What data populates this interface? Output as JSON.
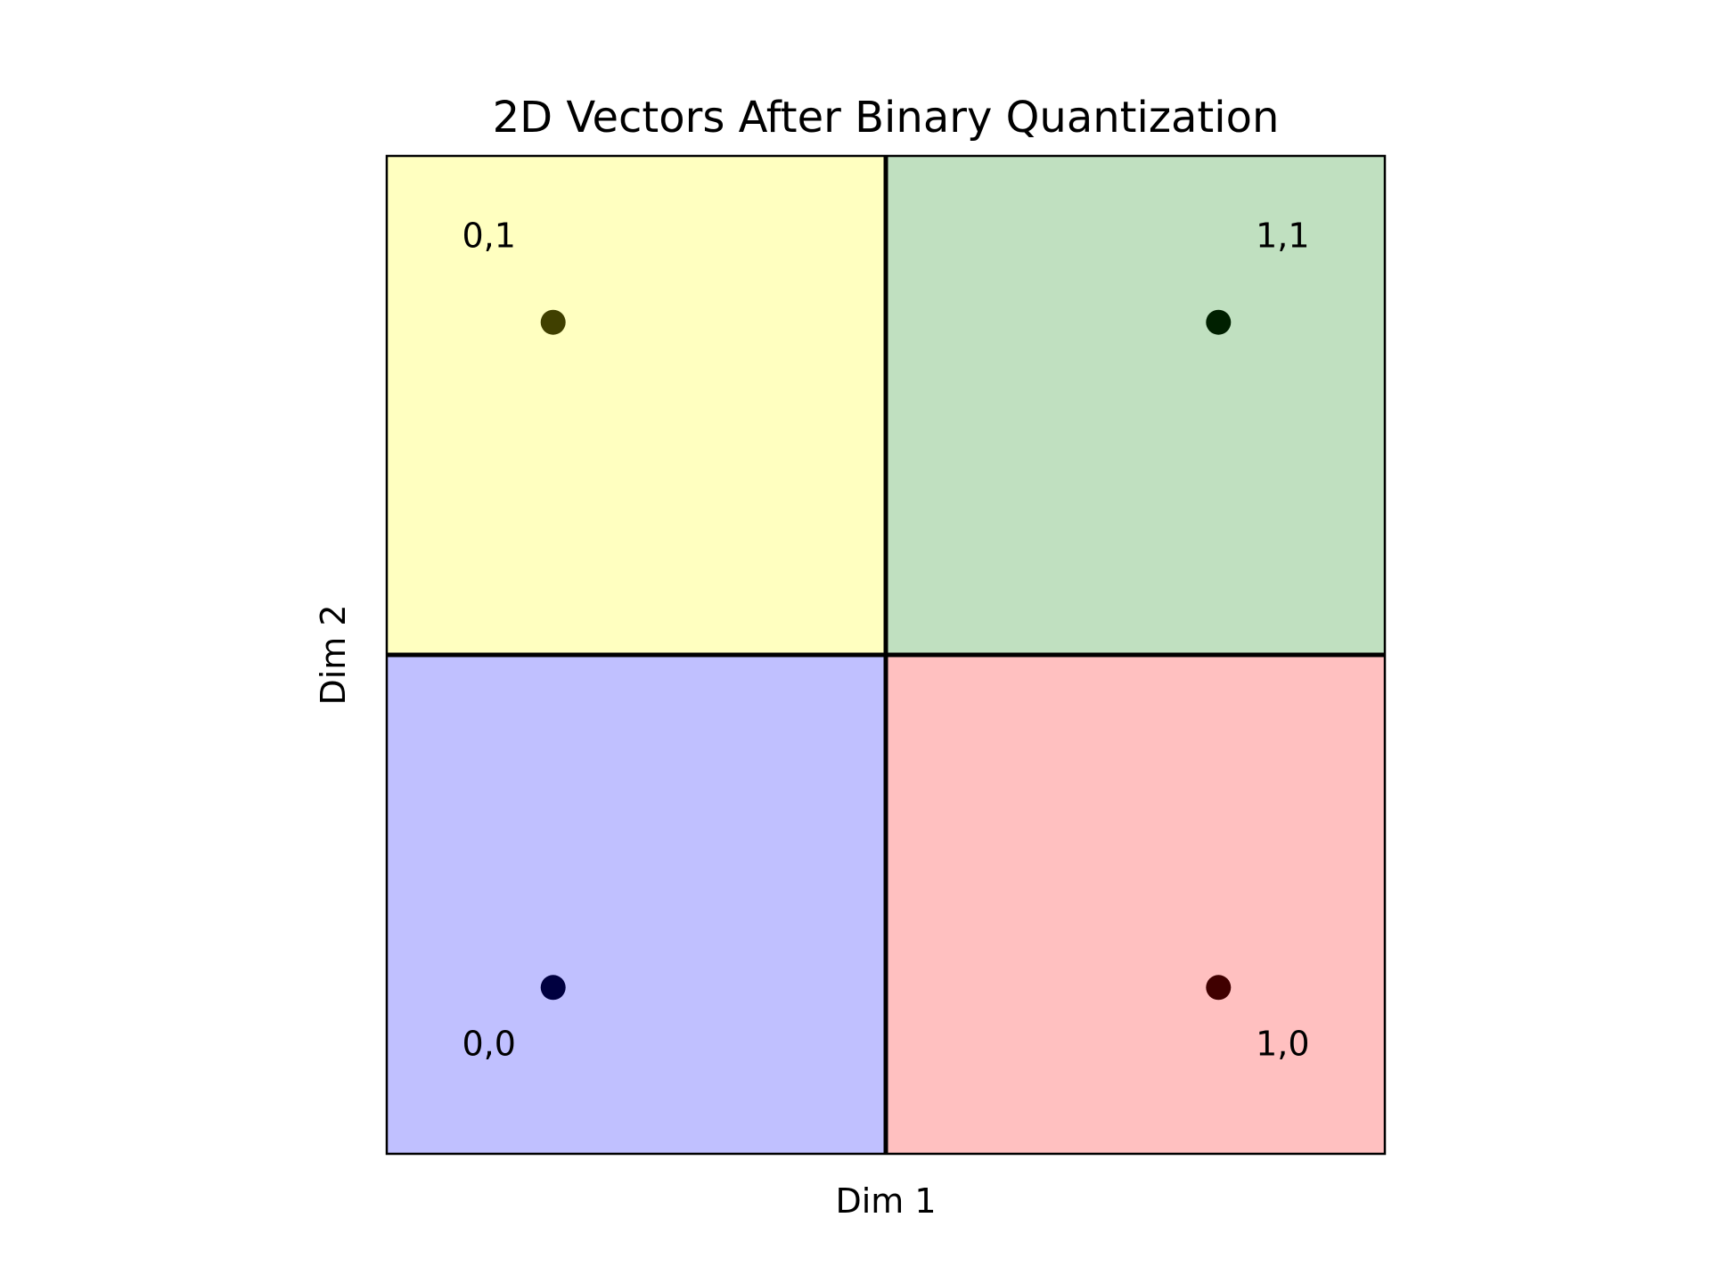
{
  "chart_data": {
    "type": "scatter",
    "title": "2D Vectors After Binary Quantization",
    "xlabel": "Dim 1",
    "ylabel": "Dim 2",
    "xlim": [
      0,
      1
    ],
    "ylim": [
      0,
      1
    ],
    "ticks_visible": false,
    "grid": false,
    "regions": [
      {
        "name": "0,0",
        "x_range": [
          0,
          0.5
        ],
        "y_range": [
          0,
          0.5
        ],
        "color": "#c0c0ff"
      },
      {
        "name": "1,0",
        "x_range": [
          0.5,
          1
        ],
        "y_range": [
          0,
          0.5
        ],
        "color": "#ffc0c0"
      },
      {
        "name": "0,1",
        "x_range": [
          0,
          0.5
        ],
        "y_range": [
          0.5,
          1
        ],
        "color": "#ffffc0"
      },
      {
        "name": "1,1",
        "x_range": [
          0.5,
          1
        ],
        "y_range": [
          0.5,
          1
        ],
        "color": "#c0e0c0"
      }
    ],
    "points": [
      {
        "label": "0,0",
        "x": 0.1667,
        "y": 0.1667,
        "color": "#000040",
        "label_position": "below-left"
      },
      {
        "label": "1,0",
        "x": 0.8333,
        "y": 0.1667,
        "color": "#400000",
        "label_position": "below-right"
      },
      {
        "label": "0,1",
        "x": 0.1667,
        "y": 0.8333,
        "color": "#404000",
        "label_position": "above-left"
      },
      {
        "label": "1,1",
        "x": 0.8333,
        "y": 0.8333,
        "color": "#002000",
        "label_position": "above-right"
      }
    ],
    "divider_color": "#000000"
  }
}
